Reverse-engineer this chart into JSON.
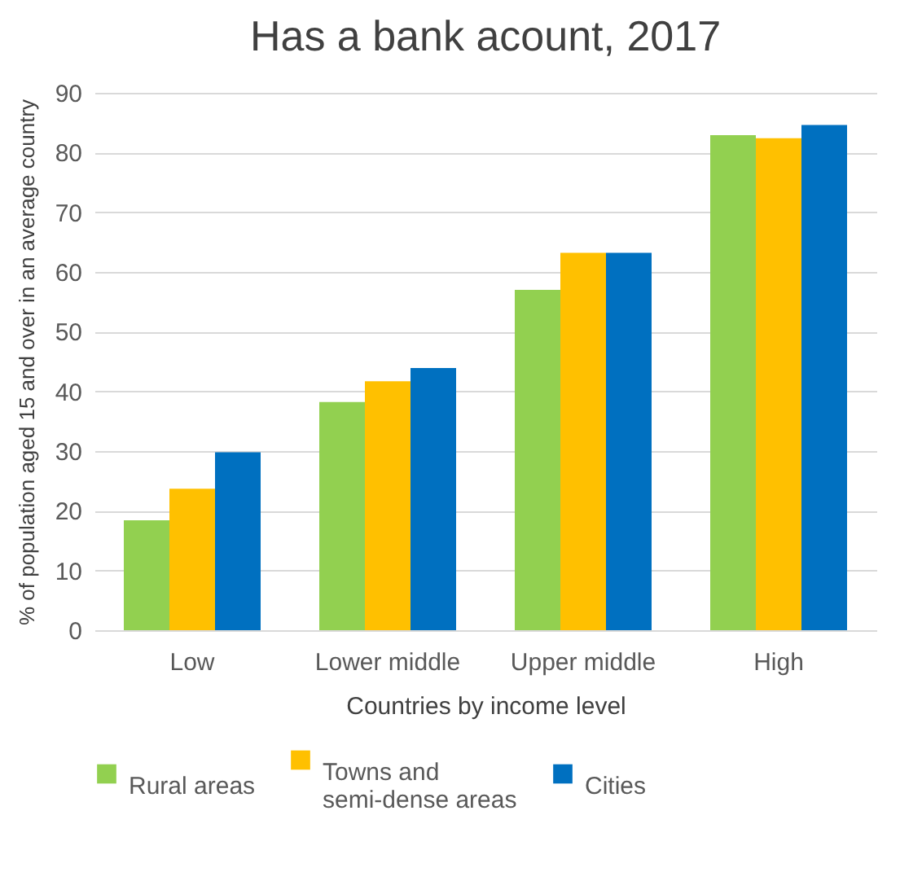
{
  "chart_data": {
    "type": "bar",
    "title": "Has a bank acount, 2017",
    "xlabel": "Countries by income level",
    "ylabel": "% of population aged 15 and over in an average country",
    "categories": [
      "Low",
      "Lower middle",
      "Upper middle",
      "High"
    ],
    "series": [
      {
        "name": "Rural areas",
        "color": "#92d050",
        "values": [
          18.4,
          38.2,
          57.0,
          82.9
        ]
      },
      {
        "name": "Towns and semi-dense areas",
        "color": "#ffc000",
        "values": [
          23.7,
          41.7,
          63.2,
          82.4
        ]
      },
      {
        "name": "Cities",
        "color": "#0070c0",
        "values": [
          29.8,
          43.9,
          63.2,
          84.6
        ]
      }
    ],
    "ylim": [
      0,
      90
    ],
    "yticks": [
      0,
      10,
      20,
      30,
      40,
      50,
      60,
      70,
      80,
      90
    ],
    "grid": "y",
    "legend": "bottom"
  }
}
